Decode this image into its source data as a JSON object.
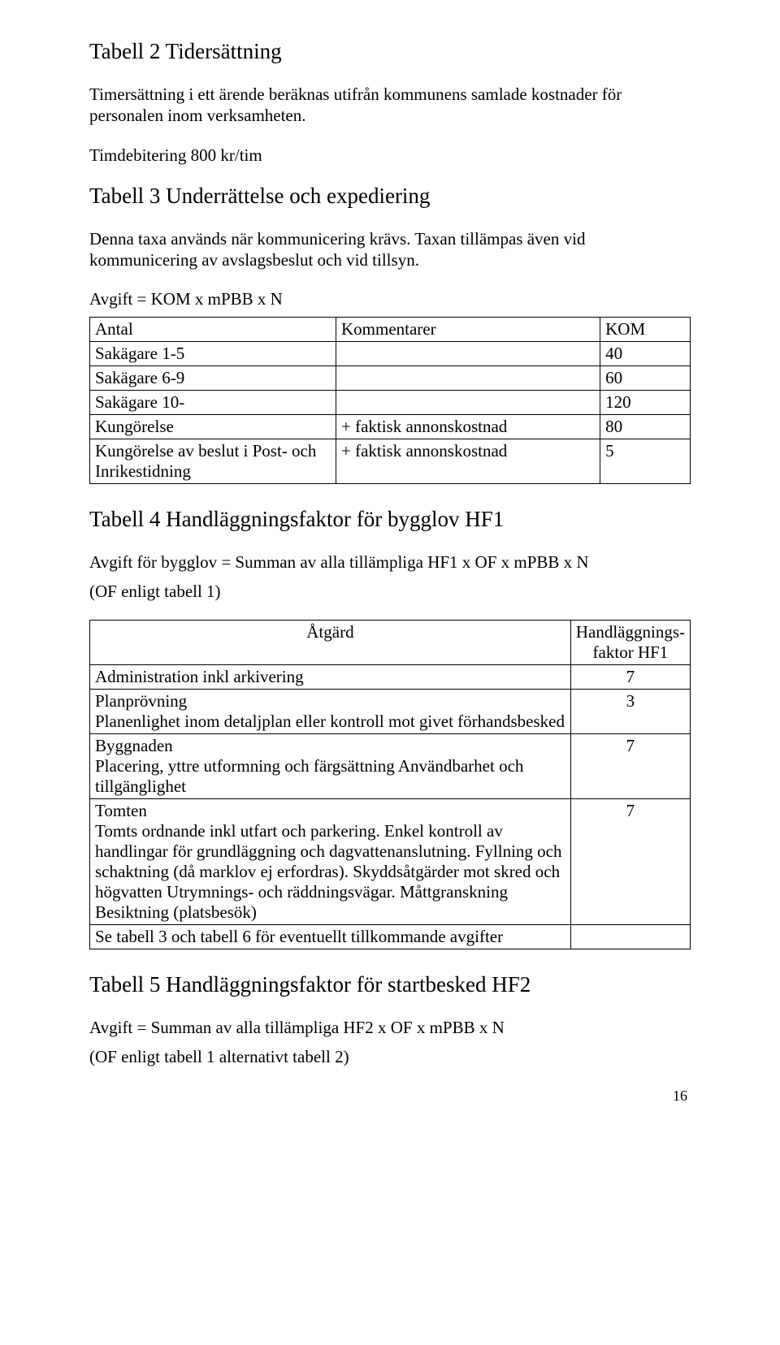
{
  "section1": {
    "heading": "Tabell 2 Tidersättning",
    "p1": "Timersättning i ett ärende beräknas utifrån kommunens samlade kostnader för personalen inom verksamheten.",
    "p2": "Timdebitering 800 kr/tim"
  },
  "section2": {
    "heading": "Tabell 3 Underrättelse och expediering",
    "p1": "Denna taxa används när kommunicering krävs. Taxan tillämpas även vid kommunicering av avslagsbeslut och vid tillsyn.",
    "formula": "Avgift = KOM x mPBB x N",
    "table": {
      "headers": [
        "Antal",
        "Kommentarer",
        "KOM"
      ],
      "rows": [
        [
          "Sakägare 1-5",
          "",
          "40"
        ],
        [
          "Sakägare 6-9",
          "",
          "60"
        ],
        [
          "Sakägare 10-",
          "",
          "120"
        ],
        [
          "Kungörelse",
          "+ faktisk annonskostnad",
          "80"
        ],
        [
          "Kungörelse av beslut i Post- och Inrikestidning",
          "+ faktisk annonskostnad",
          "5"
        ]
      ]
    }
  },
  "section3": {
    "heading": "Tabell 4 Handläggningsfaktor för bygglov HF1",
    "p1": "Avgift för bygglov = Summan av alla tillämpliga HF1 x OF x mPBB x N",
    "p1b": "(OF enligt tabell 1)",
    "table": {
      "headers": [
        "Åtgärd",
        "Handläggnings-faktor HF1"
      ],
      "rows": [
        [
          "Administration inkl arkivering",
          "7"
        ],
        [
          "Planprövning\nPlanenlighet inom detaljplan eller kontroll mot givet förhandsbesked",
          "3"
        ],
        [
          "Byggnaden\nPlacering, yttre utformning och färgsättning Användbarhet och tillgänglighet",
          "7"
        ],
        [
          "Tomten\nTomts ordnande inkl utfart och parkering. Enkel kontroll av handlingar för grundläggning och dagvattenanslutning. Fyllning och schaktning (då marklov ej erfordras). Skyddsåtgärder mot skred och högvatten Utrymnings- och räddningsvägar. Måttgranskning Besiktning (platsbesök)",
          "7"
        ],
        [
          "Se tabell 3 och tabell 6 för eventuellt tillkommande avgifter",
          ""
        ]
      ]
    }
  },
  "section4": {
    "heading": "Tabell 5 Handläggningsfaktor för startbesked HF2",
    "p1": "Avgift = Summan av alla tillämpliga HF2 x OF x mPBB x N",
    "p1b": "(OF enligt tabell 1 alternativt tabell 2)"
  },
  "pageNumber": "16"
}
